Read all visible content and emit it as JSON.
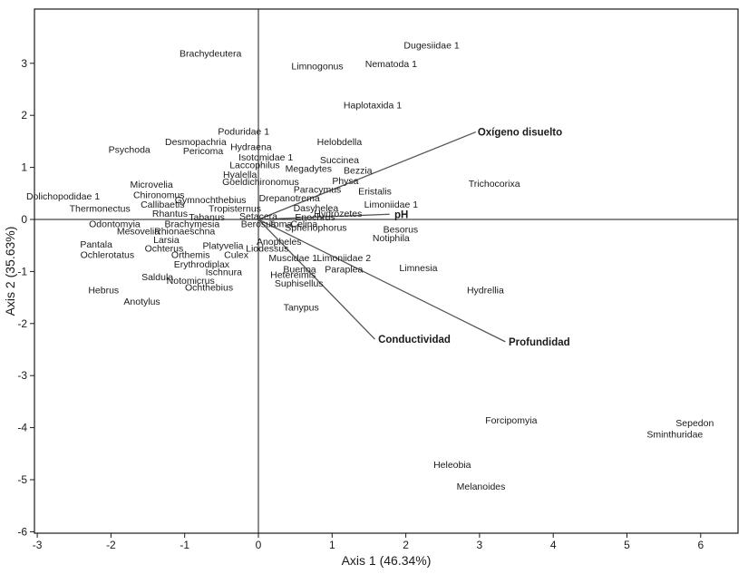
{
  "chart_data": {
    "type": "scatter",
    "title": "",
    "xlabel": "Axis 1 (46.34%)",
    "ylabel": "Axis 2 (35.63%)",
    "xlim": [
      -3,
      6.5
    ],
    "ylim": [
      -6,
      4
    ],
    "xticks": [
      -3,
      -2,
      -1,
      0,
      1,
      2,
      3,
      4,
      5,
      6
    ],
    "yticks": [
      -6,
      -5,
      -4,
      -3,
      -2,
      -1,
      0,
      1,
      2,
      3
    ],
    "grid": false,
    "zero_lines": true,
    "line_color": "#555555",
    "species": [
      {
        "name": "Dugesiidae 1",
        "x": 2.35,
        "y": 3.35
      },
      {
        "name": "Brachydeutera",
        "x": -0.65,
        "y": 3.2
      },
      {
        "name": "Limnogonus",
        "x": 0.8,
        "y": 2.95
      },
      {
        "name": "Nematoda 1",
        "x": 1.8,
        "y": 3.0
      },
      {
        "name": "Haplotaxida 1",
        "x": 1.55,
        "y": 2.2
      },
      {
        "name": "Poduridae 1",
        "x": -0.2,
        "y": 1.7
      },
      {
        "name": "Desmopachria",
        "x": -0.85,
        "y": 1.5
      },
      {
        "name": "Helobdella",
        "x": 1.1,
        "y": 1.5
      },
      {
        "name": "Psychoda",
        "x": -1.75,
        "y": 1.35
      },
      {
        "name": "Hydraena",
        "x": -0.1,
        "y": 1.4
      },
      {
        "name": "Pericoma",
        "x": -0.75,
        "y": 1.32
      },
      {
        "name": "Isotomidae 1",
        "x": 0.1,
        "y": 1.2
      },
      {
        "name": "Succinea",
        "x": 1.1,
        "y": 1.15
      },
      {
        "name": "Laccophilus",
        "x": -0.05,
        "y": 1.05
      },
      {
        "name": "Megadytes",
        "x": 0.68,
        "y": 0.98
      },
      {
        "name": "Bezzia",
        "x": 1.35,
        "y": 0.95
      },
      {
        "name": "Hyalella",
        "x": -0.25,
        "y": 0.87
      },
      {
        "name": "Goeldichironomus",
        "x": 0.03,
        "y": 0.73
      },
      {
        "name": "Physa",
        "x": 1.18,
        "y": 0.75
      },
      {
        "name": "Paracymus",
        "x": 0.8,
        "y": 0.58
      },
      {
        "name": "Eristalis",
        "x": 1.58,
        "y": 0.55
      },
      {
        "name": "Trichocorixa",
        "x": 3.2,
        "y": 0.7
      },
      {
        "name": "Microvelia",
        "x": -1.45,
        "y": 0.68
      },
      {
        "name": "Chironomus",
        "x": -1.35,
        "y": 0.48
      },
      {
        "name": "Gymnochthebius",
        "x": -0.65,
        "y": 0.38
      },
      {
        "name": "Drepanotrema",
        "x": 0.42,
        "y": 0.42
      },
      {
        "name": "Dolichopodidae 1",
        "x": -2.65,
        "y": 0.45
      },
      {
        "name": "Callibaetis",
        "x": -1.3,
        "y": 0.3
      },
      {
        "name": "Limoniidae 1",
        "x": 1.8,
        "y": 0.3
      },
      {
        "name": "Dasyhelea",
        "x": 0.78,
        "y": 0.23
      },
      {
        "name": "Thermonectus",
        "x": -2.15,
        "y": 0.22
      },
      {
        "name": "Tropisternus",
        "x": -0.32,
        "y": 0.22
      },
      {
        "name": "Rhantus",
        "x": -1.2,
        "y": 0.12
      },
      {
        "name": "Setacera",
        "x": 0.0,
        "y": 0.07
      },
      {
        "name": "Hydrozetes",
        "x": 1.08,
        "y": 0.12
      },
      {
        "name": "Tabanus",
        "x": -0.7,
        "y": 0.05
      },
      {
        "name": "Enochrus",
        "x": 0.77,
        "y": 0.05
      },
      {
        "name": "Odontomyia",
        "x": -1.95,
        "y": -0.08
      },
      {
        "name": "Brachymesia",
        "x": -0.9,
        "y": -0.08
      },
      {
        "name": "Berosus",
        "x": 0.0,
        "y": -0.08
      },
      {
        "name": "Toma",
        "x": 0.3,
        "y": -0.08
      },
      {
        "name": "Celina",
        "x": 0.62,
        "y": -0.08
      },
      {
        "name": "Sphenophorus",
        "x": 0.78,
        "y": -0.15
      },
      {
        "name": "Besorus",
        "x": 1.93,
        "y": -0.18
      },
      {
        "name": "Mesovelia",
        "x": -1.63,
        "y": -0.22
      },
      {
        "name": "Rhionaeschna",
        "x": -1.0,
        "y": -0.22
      },
      {
        "name": "Notiphila",
        "x": 1.8,
        "y": -0.35
      },
      {
        "name": "Larsia",
        "x": -1.25,
        "y": -0.38
      },
      {
        "name": "Pantala",
        "x": -2.2,
        "y": -0.47
      },
      {
        "name": "Anopheles",
        "x": 0.28,
        "y": -0.42
      },
      {
        "name": "Ochterus",
        "x": -1.28,
        "y": -0.55
      },
      {
        "name": "Platyvelia",
        "x": -0.48,
        "y": -0.5
      },
      {
        "name": "Liodessus",
        "x": 0.12,
        "y": -0.55
      },
      {
        "name": "Ochlerotatus",
        "x": -2.05,
        "y": -0.67
      },
      {
        "name": "Orthemis",
        "x": -0.92,
        "y": -0.67
      },
      {
        "name": "Culex",
        "x": -0.3,
        "y": -0.67
      },
      {
        "name": "Muscidae 1",
        "x": 0.47,
        "y": -0.73
      },
      {
        "name": "Limoniidae 2",
        "x": 1.16,
        "y": -0.73
      },
      {
        "name": "Erythrodiplax",
        "x": -0.77,
        "y": -0.85
      },
      {
        "name": "Limnesia",
        "x": 2.17,
        "y": -0.92
      },
      {
        "name": "Buenoa",
        "x": 0.56,
        "y": -0.95
      },
      {
        "name": "Paraplea",
        "x": 1.16,
        "y": -0.95
      },
      {
        "name": "Ischnura",
        "x": -0.47,
        "y": -1.0
      },
      {
        "name": "Hetereimis",
        "x": 0.47,
        "y": -1.05
      },
      {
        "name": "Saldula",
        "x": -1.37,
        "y": -1.1
      },
      {
        "name": "Notomicrus",
        "x": -0.92,
        "y": -1.17
      },
      {
        "name": "Suphisellus",
        "x": 0.55,
        "y": -1.22
      },
      {
        "name": "Ochthebius",
        "x": -0.67,
        "y": -1.3
      },
      {
        "name": "Hebrus",
        "x": -2.1,
        "y": -1.35
      },
      {
        "name": "Hydrellia",
        "x": 3.08,
        "y": -1.35
      },
      {
        "name": "Anotylus",
        "x": -1.58,
        "y": -1.57
      },
      {
        "name": "Tanypus",
        "x": 0.58,
        "y": -1.68
      },
      {
        "name": "Forcipomyia",
        "x": 3.43,
        "y": -3.85
      },
      {
        "name": "Sepedon",
        "x": 5.92,
        "y": -3.9
      },
      {
        "name": "Sminthuridae",
        "x": 5.65,
        "y": -4.12
      },
      {
        "name": "Heleobia",
        "x": 2.63,
        "y": -4.7
      },
      {
        "name": "Melanoides",
        "x": 3.02,
        "y": -5.12
      }
    ],
    "vectors": [
      {
        "name": "Oxígeno disuelto",
        "x": 2.95,
        "y": 1.68,
        "label_x": 2.95,
        "label_y": 1.68
      },
      {
        "name": "pH",
        "x": 1.78,
        "y": 0.1,
        "label_x": 1.82,
        "label_y": 0.1
      },
      {
        "name": "Conductividad",
        "x": 1.58,
        "y": -2.3,
        "label_x": 1.6,
        "label_y": -2.3
      },
      {
        "name": "Profundidad",
        "x": 3.35,
        "y": -2.35,
        "label_x": 3.37,
        "label_y": -2.35
      }
    ]
  }
}
